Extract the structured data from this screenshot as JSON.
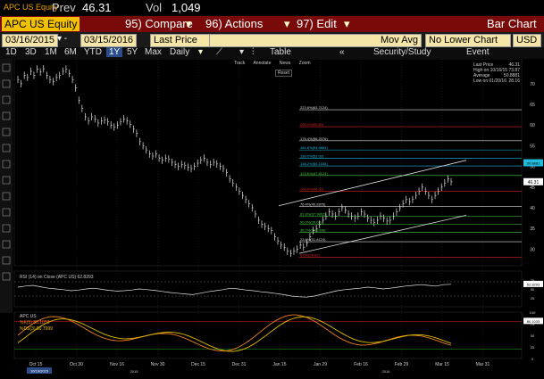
{
  "header": {
    "ticker": "APC US Equity",
    "prev_label": "Prev",
    "prev_value": "46.31",
    "vol_label": "Vol",
    "vol_value": "1,049"
  },
  "menu": {
    "security": "APC US Equity",
    "compare": "95) Compare",
    "actions": "96) Actions",
    "edit": "97) Edit",
    "title": "Bar Chart"
  },
  "controls": {
    "start_date": "03/16/2015",
    "end_date": "03/15/2016",
    "price_field": "Last Price",
    "study_field": "Mov Avg",
    "lower_chart": "No Lower Chart",
    "currency": "USD"
  },
  "toolbar": {
    "periods": [
      "1D",
      "3D",
      "1M",
      "6M",
      "YTD",
      "1Y",
      "5Y",
      "Max"
    ],
    "selected_period": "1Y",
    "frequency": "Daily",
    "table": "Table",
    "security_study": "Security/Study",
    "event": "Event",
    "mini": [
      "Track",
      "Annotate",
      "News",
      "Zoom"
    ],
    "reset": "Reset"
  },
  "legend": {
    "last_price": "Last Price",
    "last_price_val": "46.31",
    "high_label": "High on 10/16/15",
    "high_val": "73.87",
    "avg_label": "Average",
    "avg_val": "50.8881",
    "low_label": "Low on 01/20/16",
    "low_val": "28.16"
  },
  "fib_labels": [
    "223.6%(63.7124)",
    "200.0%(59.60)",
    "176.4%(56.2076)",
    "161.8%(53.9862)",
    "150.0%(52.02)",
    "138.2%(50.1338)",
    "123.6%(47.8124)",
    "100.0%(44.00)",
    "76.4%(40.2876)",
    "61.8%(37.9862)",
    "50.0%(36.02)",
    "38.2%(34.1338)",
    "23.6%(31.8124)",
    "0.0%(28.00)"
  ],
  "price_axis": [
    "70",
    "65",
    "60",
    "55",
    "50",
    "45",
    "40",
    "35",
    "30"
  ],
  "current_price_tag": "46.31",
  "current_tag2": "50.8881",
  "rsi": {
    "legend": "RSI (14) on Close (APC US) 62.8293",
    "axis": [
      "75",
      "50",
      "25"
    ],
    "tag": "62.8293"
  },
  "stoch": {
    "legend_title": "APC US",
    "k_label": "%K(5) 80.1033",
    "d_label": "%DS(3) 80.7999",
    "axis": [
      "100",
      "75",
      "50",
      "25",
      "0"
    ],
    "tag": "80.1033"
  },
  "x_axis": {
    "labels": [
      "Oct 15",
      "Oct 30",
      "Nov 16",
      "Nov 30",
      "Dec 15",
      "Dec 31",
      "Jan 15",
      "Jan 29",
      "Feb 16",
      "Feb 29",
      "Mar 15",
      "Mar 31"
    ],
    "year_labels": [
      "2015",
      "2016"
    ],
    "date_tag": "10/19/2015"
  }
}
